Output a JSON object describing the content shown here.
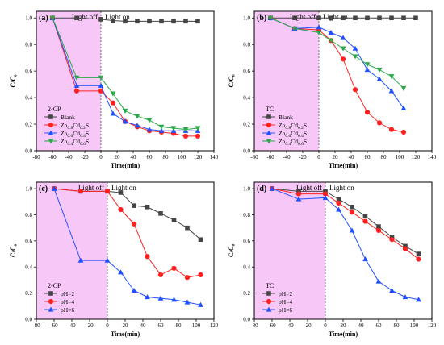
{
  "chart_data": [
    {
      "type": "line",
      "panel_label": "(a)",
      "xlabel": "Time(min)",
      "ylabel": "C/C₀",
      "xlim": [
        -80,
        140
      ],
      "ylim": [
        0.0,
        1.05
      ],
      "xticks": [
        -80,
        -60,
        -40,
        -20,
        0,
        20,
        40,
        60,
        80,
        100,
        120,
        140
      ],
      "yticks": [
        0.0,
        0.2,
        0.4,
        0.6,
        0.8,
        1.0
      ],
      "dark_region": {
        "from": -80,
        "to": 0,
        "label_left": "Light off",
        "label_right": "Light on"
      },
      "legend": {
        "title": "2-CP",
        "position": "lower-left"
      },
      "series": [
        {
          "name": "Blank",
          "sub": "",
          "color": "#444444",
          "marker": "square",
          "x": [
            -60,
            -30,
            0,
            15,
            30,
            45,
            60,
            75,
            90,
            105,
            120
          ],
          "y": [
            1.0,
            1.0,
            0.99,
            0.98,
            0.975,
            0.975,
            0.975,
            0.975,
            0.975,
            0.975,
            0.975
          ]
        },
        {
          "name": "Zn",
          "sub1": "0.8",
          "mid": "Cd",
          "sub2": "0.2",
          "tail": "S",
          "color": "#ff2020",
          "marker": "circle",
          "x": [
            -60,
            -30,
            0,
            15,
            30,
            45,
            60,
            75,
            90,
            105,
            120
          ],
          "y": [
            1.0,
            0.45,
            0.45,
            0.36,
            0.22,
            0.18,
            0.15,
            0.14,
            0.13,
            0.11,
            0.11
          ]
        },
        {
          "name": "Zn",
          "sub1": "0.6",
          "mid": "Cd",
          "sub2": "0.4",
          "tail": "S",
          "color": "#2050ff",
          "marker": "triangle-up",
          "x": [
            -60,
            -30,
            0,
            15,
            30,
            45,
            60,
            75,
            90,
            105,
            120
          ],
          "y": [
            1.0,
            0.49,
            0.49,
            0.28,
            0.22,
            0.19,
            0.16,
            0.15,
            0.15,
            0.15,
            0.15
          ]
        },
        {
          "name": "Zn",
          "sub1": "0.4",
          "mid": "Cd",
          "sub2": "0.6",
          "tail": "S",
          "color": "#2aa84a",
          "marker": "triangle-down",
          "x": [
            -60,
            -30,
            0,
            15,
            30,
            45,
            60,
            75,
            90,
            105,
            120
          ],
          "y": [
            1.0,
            0.55,
            0.55,
            0.43,
            0.3,
            0.26,
            0.23,
            0.18,
            0.17,
            0.16,
            0.17
          ]
        }
      ]
    },
    {
      "type": "line",
      "panel_label": "(b)",
      "xlabel": "Time(min)",
      "ylabel": "C/C₀",
      "xlim": [
        -80,
        140
      ],
      "ylim": [
        0.0,
        1.05
      ],
      "xticks": [
        -80,
        -60,
        -40,
        -20,
        0,
        20,
        40,
        60,
        80,
        100,
        120,
        140
      ],
      "yticks": [
        0.0,
        0.2,
        0.4,
        0.6,
        0.8,
        1.0
      ],
      "dark_region": {
        "from": -80,
        "to": 0,
        "label_left": "Light off",
        "label_right": "Light on"
      },
      "legend": {
        "title": "TC",
        "position": "lower-left"
      },
      "series": [
        {
          "name": "Blank",
          "sub": "",
          "color": "#444444",
          "marker": "square",
          "x": [
            -60,
            -30,
            0,
            15,
            30,
            45,
            60,
            75,
            90,
            105,
            120
          ],
          "y": [
            1.0,
            1.0,
            1.0,
            1.0,
            1.0,
            1.0,
            1.0,
            1.0,
            1.0,
            1.0,
            1.0
          ]
        },
        {
          "name": "Zn",
          "sub1": "0.8",
          "mid": "Cd",
          "sub2": "0.2",
          "tail": "S",
          "color": "#ff2020",
          "marker": "circle",
          "x": [
            -60,
            -30,
            0,
            15,
            30,
            45,
            60,
            75,
            90,
            105
          ],
          "y": [
            1.0,
            0.92,
            0.91,
            0.83,
            0.69,
            0.46,
            0.29,
            0.21,
            0.16,
            0.14
          ]
        },
        {
          "name": "Zn",
          "sub1": "0.6",
          "mid": "Cd",
          "sub2": "0.4",
          "tail": "S",
          "color": "#2050ff",
          "marker": "triangle-up",
          "x": [
            -60,
            -30,
            0,
            15,
            30,
            45,
            60,
            75,
            90,
            105
          ],
          "y": [
            1.0,
            0.92,
            0.93,
            0.89,
            0.85,
            0.77,
            0.61,
            0.54,
            0.45,
            0.32
          ]
        },
        {
          "name": "Zn",
          "sub1": "0.4",
          "mid": "Cd",
          "sub2": "0.6",
          "tail": "S",
          "color": "#2aa84a",
          "marker": "triangle-down",
          "x": [
            -60,
            -30,
            0,
            15,
            30,
            45,
            60,
            75,
            90,
            105
          ],
          "y": [
            1.0,
            0.92,
            0.89,
            0.83,
            0.77,
            0.71,
            0.65,
            0.61,
            0.56,
            0.47
          ]
        }
      ]
    },
    {
      "type": "line",
      "panel_label": "(c)",
      "xlabel": "Time(min)",
      "ylabel": "C/C₀",
      "xlim": [
        -80,
        120
      ],
      "ylim": [
        0.0,
        1.05
      ],
      "xticks": [
        -80,
        -60,
        -40,
        -20,
        0,
        20,
        40,
        60,
        80,
        100,
        120
      ],
      "yticks": [
        0.0,
        0.2,
        0.4,
        0.6,
        0.8,
        1.0
      ],
      "dark_region": {
        "from": -80,
        "to": 0,
        "label_left": "Light off",
        "label_right": "Light on"
      },
      "legend": {
        "title": "2-CP",
        "position": "lower-left"
      },
      "series": [
        {
          "name": "pH=2",
          "sub": "",
          "color": "#444444",
          "marker": "square",
          "x": [
            -60,
            -30,
            0,
            15,
            30,
            45,
            60,
            75,
            90,
            105
          ],
          "y": [
            1.0,
            0.98,
            0.98,
            0.97,
            0.87,
            0.86,
            0.81,
            0.76,
            0.7,
            0.61
          ]
        },
        {
          "name": "pH=4",
          "sub": "",
          "color": "#ff2020",
          "marker": "circle",
          "x": [
            -60,
            -30,
            0,
            15,
            30,
            45,
            60,
            75,
            90,
            105
          ],
          "y": [
            1.0,
            0.98,
            0.98,
            0.84,
            0.73,
            0.48,
            0.34,
            0.39,
            0.32,
            0.34
          ]
        },
        {
          "name": "pH=6",
          "sub": "",
          "color": "#2050ff",
          "marker": "triangle-up",
          "x": [
            -60,
            -30,
            0,
            15,
            30,
            45,
            60,
            75,
            90,
            105
          ],
          "y": [
            1.0,
            0.45,
            0.45,
            0.36,
            0.22,
            0.17,
            0.16,
            0.15,
            0.13,
            0.11
          ]
        }
      ]
    },
    {
      "type": "line",
      "panel_label": "(d)",
      "xlabel": "Time(min)",
      "ylabel": "C/C₀",
      "xlim": [
        -80,
        120
      ],
      "ylim": [
        0.0,
        1.05
      ],
      "xticks": [
        -80,
        -60,
        -40,
        -20,
        0,
        20,
        40,
        60,
        80,
        100,
        120
      ],
      "yticks": [
        0.0,
        0.2,
        0.4,
        0.6,
        0.8,
        1.0
      ],
      "dark_region": {
        "from": -80,
        "to": 0,
        "label_left": "Light off",
        "label_right": "Light on"
      },
      "legend": {
        "title": "TC",
        "position": "lower-left"
      },
      "series": [
        {
          "name": "pH=2",
          "sub": "",
          "color": "#444444",
          "marker": "square",
          "x": [
            -60,
            -30,
            0,
            15,
            30,
            45,
            60,
            75,
            90,
            105
          ],
          "y": [
            1.0,
            0.98,
            0.98,
            0.92,
            0.86,
            0.79,
            0.71,
            0.63,
            0.56,
            0.5
          ]
        },
        {
          "name": "pH=4",
          "sub": "",
          "color": "#ff2020",
          "marker": "circle",
          "x": [
            -60,
            -30,
            0,
            15,
            30,
            45,
            60,
            75,
            90,
            105
          ],
          "y": [
            1.0,
            0.96,
            0.96,
            0.89,
            0.82,
            0.75,
            0.68,
            0.61,
            0.54,
            0.46
          ]
        },
        {
          "name": "pH=6",
          "sub": "",
          "color": "#2050ff",
          "marker": "triangle-up",
          "x": [
            -60,
            -30,
            0,
            15,
            30,
            45,
            60,
            75,
            90,
            105
          ],
          "y": [
            1.0,
            0.92,
            0.93,
            0.84,
            0.68,
            0.46,
            0.29,
            0.22,
            0.17,
            0.15
          ]
        }
      ]
    }
  ],
  "style": {
    "dark_region_color": "#f7c8f7",
    "divider_color": "#555555"
  }
}
